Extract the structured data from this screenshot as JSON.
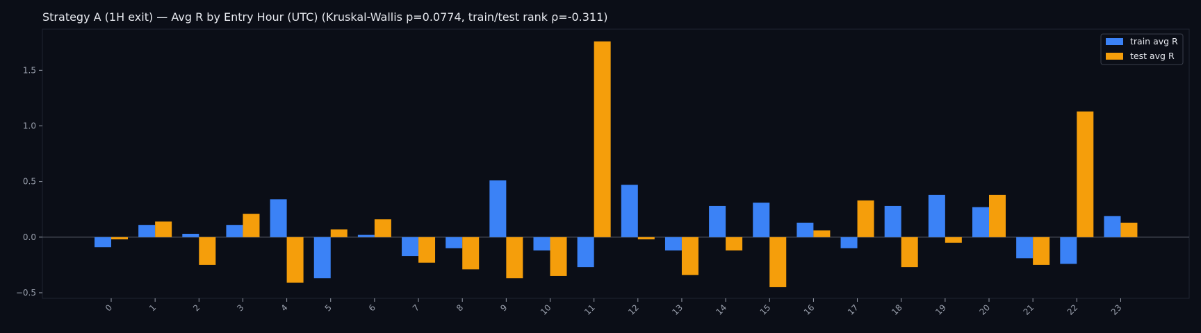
{
  "colors": {
    "background": "#0b0e17",
    "train": "#3b82f6",
    "test": "#f59e0b",
    "axis": "#2a2f3b",
    "text": "#e6e8ee",
    "tick": "#9aa0ad"
  },
  "chart_data": {
    "type": "bar",
    "title": "Strategy A (1H exit) — Avg R by Entry Hour (UTC) (Kruskal-Wallis p=0.0774, train/test rank ρ=-0.311)",
    "xlabel": "",
    "ylabel": "",
    "categories": [
      "0",
      "1",
      "2",
      "3",
      "4",
      "5",
      "6",
      "7",
      "8",
      "9",
      "10",
      "11",
      "12",
      "13",
      "14",
      "15",
      "16",
      "17",
      "18",
      "19",
      "20",
      "21",
      "22",
      "23"
    ],
    "series": [
      {
        "name": "train avg R",
        "color": "#3b82f6",
        "values": [
          -0.09,
          0.11,
          0.03,
          0.11,
          0.34,
          -0.37,
          0.02,
          -0.17,
          -0.1,
          0.51,
          -0.12,
          -0.27,
          0.47,
          -0.12,
          0.28,
          0.31,
          0.13,
          -0.1,
          0.28,
          0.38,
          0.27,
          -0.19,
          -0.24,
          0.19
        ]
      },
      {
        "name": "test avg R",
        "color": "#f59e0b",
        "values": [
          -0.02,
          0.14,
          -0.25,
          0.21,
          -0.41,
          0.07,
          0.16,
          -0.23,
          -0.29,
          -0.37,
          -0.35,
          1.76,
          -0.02,
          -0.34,
          -0.12,
          -0.45,
          0.06,
          0.33,
          -0.27,
          -0.05,
          0.38,
          -0.25,
          1.13,
          0.13
        ]
      }
    ],
    "yticks": [
      "−0.5",
      "0.0",
      "0.5",
      "1.0",
      "1.5"
    ],
    "ytick_values": [
      -0.5,
      0.0,
      0.5,
      1.0,
      1.5
    ],
    "ylim": [
      -0.55,
      1.87
    ],
    "grid": false,
    "legend_position": "top-right"
  }
}
